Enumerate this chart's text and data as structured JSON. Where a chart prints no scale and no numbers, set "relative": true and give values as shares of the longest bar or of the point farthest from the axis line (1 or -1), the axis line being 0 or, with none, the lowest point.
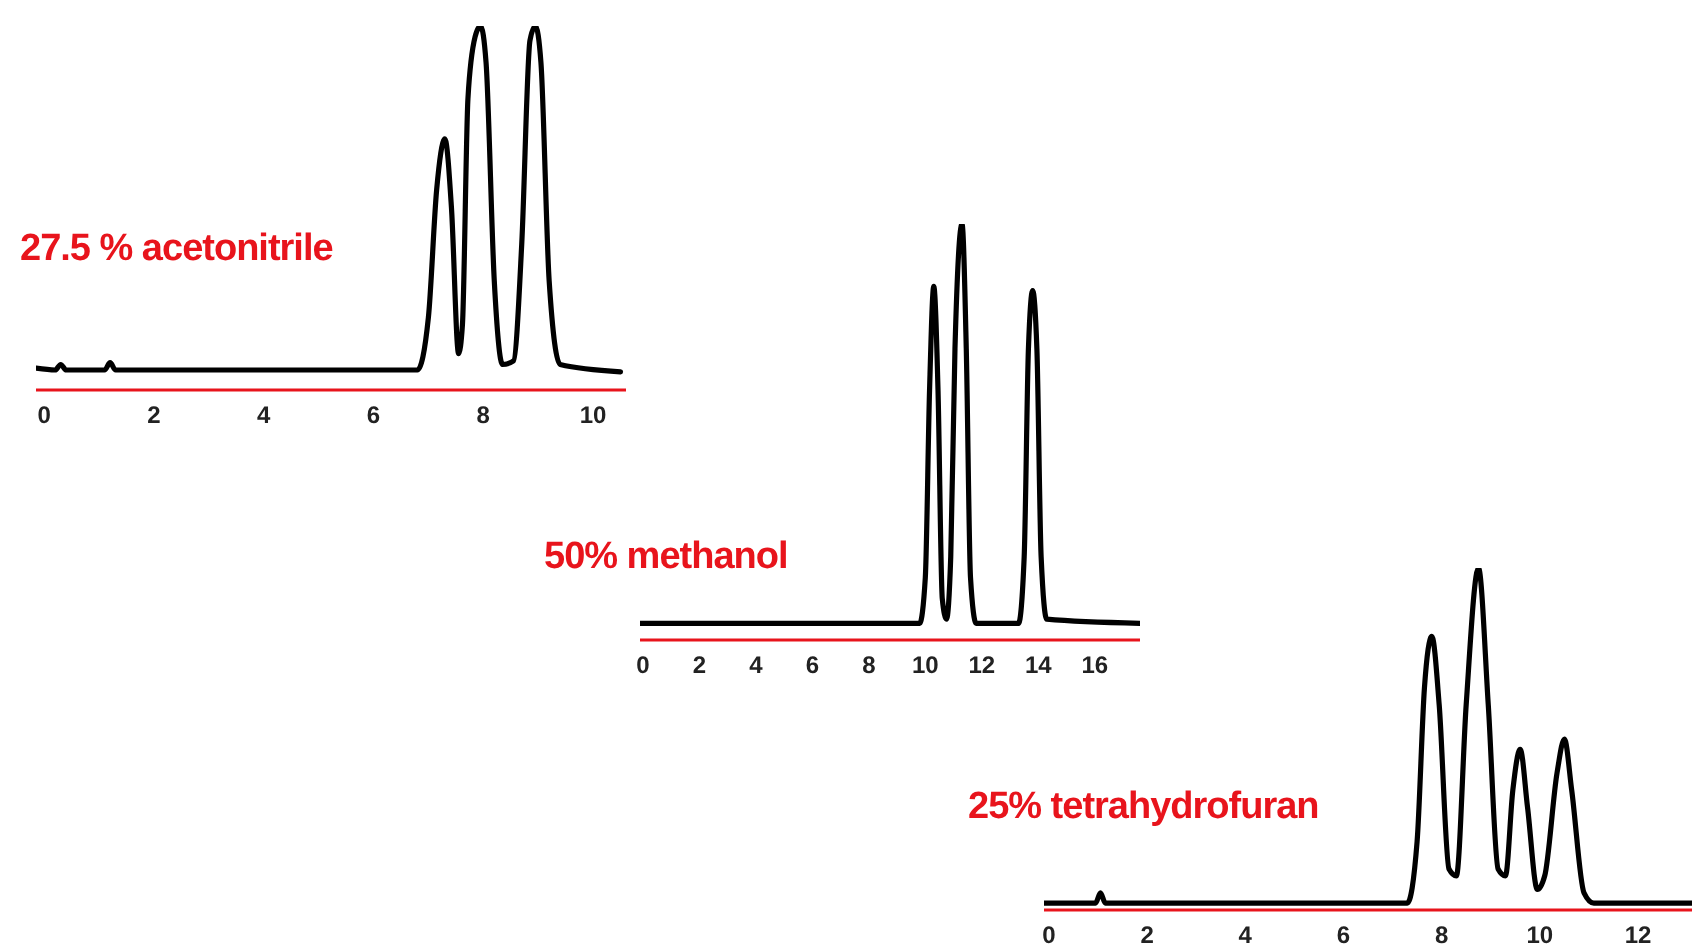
{
  "chart_data": [
    {
      "type": "line",
      "title": "27.5 % acetonitrile",
      "relative": true,
      "xlim": [
        -0.15,
        10.6
      ],
      "xticks": [
        0,
        2,
        4,
        6,
        8,
        10
      ],
      "x": [
        -0.15,
        0.2,
        0.3,
        0.4,
        1.1,
        1.2,
        1.3,
        6.8,
        7.0,
        7.15,
        7.3,
        7.42,
        7.55,
        7.62,
        7.72,
        7.85,
        7.95,
        8.05,
        8.2,
        8.35,
        8.55,
        8.7,
        8.85,
        8.95,
        9.05,
        9.2,
        9.4,
        10.5
      ],
      "series": [
        {
          "color": "#000000",
          "values": [
            0.06,
            0.055,
            0.07,
            0.055,
            0.055,
            0.075,
            0.055,
            0.055,
            0.2,
            0.55,
            0.69,
            0.5,
            0.1,
            0.18,
            0.8,
            0.97,
            1,
            0.9,
            0.3,
            0.07,
            0.08,
            0.4,
            0.96,
            1,
            0.9,
            0.3,
            0.07,
            0.05
          ]
        }
      ]
    },
    {
      "type": "line",
      "title": "50% methanol",
      "relative": true,
      "xlim": [
        -0.1,
        17.6
      ],
      "xticks": [
        0,
        2,
        4,
        6,
        8,
        10,
        12,
        14,
        16
      ],
      "x": [
        -0.1,
        9.8,
        10.0,
        10.15,
        10.3,
        10.45,
        10.6,
        10.75,
        10.9,
        11.05,
        11.3,
        11.45,
        11.6,
        11.8,
        13.3,
        13.5,
        13.65,
        13.8,
        13.95,
        14.1,
        14.3,
        17.6
      ],
      "series": [
        {
          "color": "#000000",
          "values": [
            0.04,
            0.04,
            0.15,
            0.6,
            0.85,
            0.6,
            0.1,
            0.05,
            0.2,
            0.7,
            1,
            0.7,
            0.15,
            0.04,
            0.04,
            0.2,
            0.7,
            0.84,
            0.7,
            0.2,
            0.05,
            0.04
          ]
        }
      ]
    },
    {
      "type": "line",
      "title": "25% tetrahydrofuran",
      "relative": true,
      "xlim": [
        -0.1,
        13.1
      ],
      "xticks": [
        0,
        2,
        4,
        6,
        8,
        10,
        12
      ],
      "x": [
        -0.1,
        0.95,
        1.05,
        1.15,
        7.3,
        7.5,
        7.65,
        7.8,
        7.95,
        8.15,
        8.3,
        8.5,
        8.75,
        8.95,
        9.15,
        9.3,
        9.45,
        9.6,
        9.75,
        9.95,
        10.1,
        10.35,
        10.5,
        10.65,
        10.9,
        11.1,
        13.1
      ],
      "series": [
        {
          "color": "#000000",
          "values": [
            0.02,
            0.02,
            0.05,
            0.02,
            0.02,
            0.2,
            0.65,
            0.8,
            0.6,
            0.12,
            0.1,
            0.6,
            1,
            0.6,
            0.12,
            0.1,
            0.35,
            0.47,
            0.3,
            0.06,
            0.1,
            0.4,
            0.5,
            0.35,
            0.05,
            0.02,
            0.02
          ]
        }
      ]
    }
  ]
}
